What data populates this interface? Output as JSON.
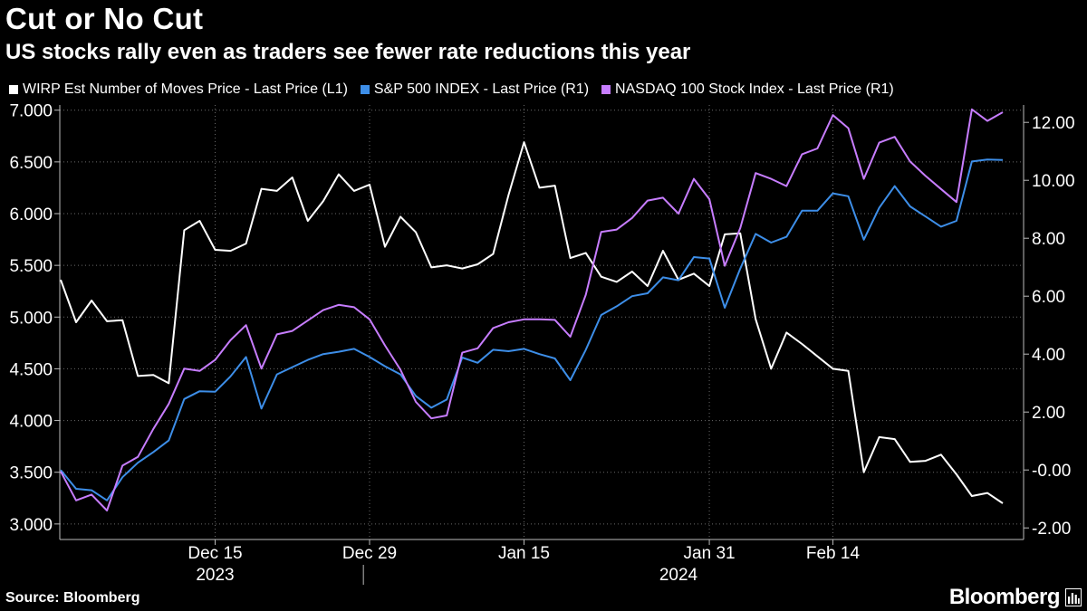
{
  "title": "Cut or No Cut",
  "subtitle": "US stocks rally even as traders see fewer rate reductions this year",
  "source": "Source: Bloomberg",
  "brand": "Bloomberg",
  "chart_data": {
    "type": "line",
    "title": "Cut or No Cut",
    "subtitle": "US stocks rally even as traders see fewer rate reductions this year",
    "legend_position": "top-left",
    "grid": true,
    "x_tick_labels": [
      "Dec 15",
      "Dec 29",
      "Jan 15",
      "Jan 31",
      "Feb 14"
    ],
    "x_tick_index": [
      10,
      20,
      30,
      42,
      50
    ],
    "year_labels": [
      "2023",
      "2024"
    ],
    "year_label_index": [
      10,
      40
    ],
    "year_divider_index": 19.6,
    "left_axis": {
      "ylim": [
        2.85,
        7.05
      ],
      "ticks": [
        "3.000",
        "3.500",
        "4.000",
        "4.500",
        "5.000",
        "5.500",
        "6.000",
        "6.500",
        "7.000"
      ],
      "tick_values": [
        3,
        3.5,
        4,
        4.5,
        5,
        5.5,
        6,
        6.5,
        7
      ]
    },
    "right_axis": {
      "ylim": [
        -2.4,
        12.6
      ],
      "ticks": [
        "-2.00",
        "-0.00",
        "2.00",
        "4.00",
        "6.00",
        "8.00",
        "10.00",
        "12.00"
      ],
      "tick_values": [
        -2,
        0,
        2,
        4,
        6,
        8,
        10,
        12
      ]
    },
    "series": [
      {
        "name": "WIRP Est Number of Moves Price - Last Price (L1)",
        "axis": "left",
        "color": "#ffffff",
        "values": [
          5.36,
          4.95,
          5.16,
          4.96,
          4.97,
          4.43,
          4.44,
          4.36,
          5.84,
          5.93,
          5.65,
          5.64,
          5.71,
          6.24,
          6.22,
          6.35,
          5.93,
          6.12,
          6.38,
          6.22,
          6.28,
          5.68,
          5.97,
          5.82,
          5.48,
          5.5,
          5.47,
          5.51,
          5.61,
          6.18,
          6.69,
          6.25,
          6.27,
          5.57,
          5.62,
          5.39,
          5.34,
          5.44,
          5.3,
          5.64,
          5.36,
          5.42,
          5.3,
          5.8,
          5.81,
          4.98,
          4.5,
          4.85,
          4.74,
          4.62,
          4.5,
          4.48,
          3.5,
          3.84,
          3.82,
          3.6,
          3.61,
          3.67,
          3.48,
          3.27,
          3.3,
          3.2
        ]
      },
      {
        "name": "S&P 500 INDEX - Last Price (R1)",
        "axis": "right",
        "color": "#3d8ee8",
        "values": [
          0.0,
          -0.65,
          -0.7,
          -1.05,
          -0.25,
          0.25,
          0.62,
          1.02,
          2.45,
          2.72,
          2.7,
          3.23,
          3.9,
          2.12,
          3.3,
          3.55,
          3.8,
          4.0,
          4.08,
          4.18,
          3.9,
          3.58,
          3.3,
          2.55,
          2.15,
          2.43,
          3.88,
          3.7,
          4.15,
          4.1,
          4.18,
          4.0,
          3.85,
          3.1,
          4.15,
          5.35,
          5.65,
          6.0,
          6.1,
          6.65,
          6.55,
          7.35,
          7.3,
          5.6,
          6.95,
          8.15,
          7.85,
          8.05,
          8.95,
          8.95,
          9.55,
          9.45,
          7.95,
          9.05,
          9.8,
          9.1,
          8.75,
          8.4,
          8.6,
          10.65,
          10.72,
          10.7
        ]
      },
      {
        "name": "NASDAQ 100 Stock Index - Last Price (R1)",
        "axis": "right",
        "color": "#c77dff",
        "values": [
          -0.05,
          -1.05,
          -0.85,
          -1.4,
          0.15,
          0.45,
          1.42,
          2.28,
          3.5,
          3.42,
          3.8,
          4.48,
          5.0,
          3.5,
          4.68,
          4.8,
          5.16,
          5.52,
          5.7,
          5.62,
          5.2,
          4.3,
          3.46,
          2.35,
          1.78,
          1.88,
          4.05,
          4.2,
          4.9,
          5.1,
          5.2,
          5.2,
          5.18,
          4.6,
          6.05,
          8.22,
          8.3,
          8.7,
          9.3,
          9.4,
          8.85,
          10.05,
          9.35,
          7.05,
          8.35,
          10.25,
          10.05,
          9.8,
          10.9,
          11.1,
          12.25,
          11.8,
          10.05,
          11.3,
          11.5,
          10.65,
          10.15,
          9.7,
          9.25,
          12.45,
          12.05,
          12.35
        ]
      }
    ]
  }
}
